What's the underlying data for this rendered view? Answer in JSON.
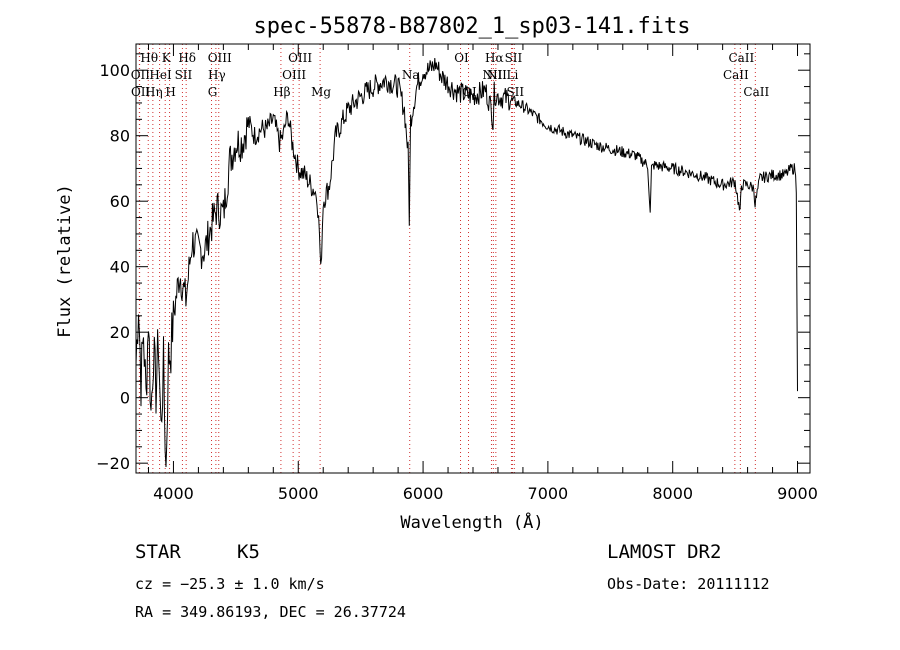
{
  "chart_data": {
    "type": "line",
    "title": "spec-55878-B87802_1_sp03-141.fits",
    "xlabel": "Wavelength (Å)",
    "ylabel": "Flux (relative)",
    "xlim": [
      3700,
      9100
    ],
    "ylim": [
      -23,
      108
    ],
    "xticks": [
      4000,
      5000,
      6000,
      7000,
      8000,
      9000
    ],
    "yticks": [
      -20,
      0,
      20,
      40,
      60,
      80,
      100
    ],
    "grid": false,
    "series": [
      {
        "x": [
          3700,
          3720,
          3740,
          3760,
          3780,
          3800,
          3820,
          3840,
          3860,
          3880,
          3900,
          3920,
          3940,
          3960,
          3980,
          4000,
          4050,
          4100,
          4150,
          4200,
          4250,
          4300,
          4350,
          4400,
          4450,
          4500,
          4550,
          4600,
          4650,
          4700,
          4750,
          4800,
          4850,
          4880,
          4900,
          4920,
          4950,
          5000,
          5050,
          5100,
          5150,
          5170,
          5180,
          5200,
          5250,
          5300,
          5400,
          5500,
          5600,
          5700,
          5800,
          5850,
          5880,
          5890,
          5900,
          5950,
          6000,
          6050,
          6100,
          6150,
          6200,
          6250,
          6300,
          6400,
          6500,
          6550,
          6560,
          6570,
          6600,
          6700,
          6800,
          6900,
          7000,
          7200,
          7400,
          7600,
          7700,
          7800,
          7820,
          7830,
          7850,
          8000,
          8200,
          8400,
          8500,
          8540,
          8550,
          8600,
          8650,
          8660,
          8700,
          8800,
          8900,
          8950,
          8980,
          8990,
          9000
        ],
        "y": [
          10,
          30,
          5,
          20,
          0,
          25,
          -5,
          15,
          2,
          18,
          -10,
          10,
          -22,
          12,
          15,
          25,
          38,
          30,
          48,
          45,
          45,
          52,
          58,
          56,
          72,
          78,
          78,
          84,
          80,
          82,
          82,
          85,
          78,
          80,
          84,
          86,
          78,
          70,
          68,
          65,
          62,
          50,
          38,
          60,
          65,
          80,
          88,
          92,
          95,
          97,
          95,
          88,
          75,
          55,
          85,
          95,
          100,
          100,
          102,
          98,
          96,
          94,
          93,
          92,
          94,
          88,
          84,
          93,
          92,
          91,
          89,
          86,
          83,
          80,
          77,
          75,
          74,
          71,
          56,
          70,
          71,
          70,
          68,
          65,
          66,
          56,
          65,
          65,
          64,
          59,
          67,
          68,
          68,
          70,
          70,
          64,
          2
        ]
      }
    ],
    "spectral_lines": [
      {
        "label": "Hθ",
        "x": 3798
      },
      {
        "label": "K",
        "x": 3934
      },
      {
        "label": "Hδ",
        "x": 4102
      },
      {
        "label": "OII",
        "x": 3727
      },
      {
        "label": "HeI",
        "x": 3889
      },
      {
        "label": "SII",
        "x": 4072
      },
      {
        "label": "OII",
        "x": 3729
      },
      {
        "label": "Hη",
        "x": 3835
      },
      {
        "label": "H",
        "x": 3969
      },
      {
        "label": "OIII",
        "x": 4363
      },
      {
        "label": "Hγ",
        "x": 4340
      },
      {
        "label": "G",
        "x": 4305
      },
      {
        "label": "OIII",
        "x": 5007
      },
      {
        "label": "OIII",
        "x": 4959
      },
      {
        "label": "Hβ",
        "x": 4861
      },
      {
        "label": "Mg",
        "x": 5175
      },
      {
        "label": "Na",
        "x": 5893
      },
      {
        "label": "OI",
        "x": 6300
      },
      {
        "label": "OI",
        "x": 6364
      },
      {
        "label": "Hα",
        "x": 6563
      },
      {
        "label": "SII",
        "x": 6716
      },
      {
        "label": "NII",
        "x": 6548
      },
      {
        "label": "NII",
        "x": 6583
      },
      {
        "label": "SII",
        "x": 6731
      },
      {
        "label": "Li",
        "x": 6708
      },
      {
        "label": "CaII",
        "x": 8542
      },
      {
        "label": "CaII",
        "x": 8498
      },
      {
        "label": "CaII",
        "x": 8662
      }
    ]
  },
  "info": {
    "object_type": "STAR",
    "subclass": "K5",
    "survey": "LAMOST DR2",
    "redshift": "cz = −25.3 ± 1.0 km/s",
    "obs_date": "Obs-Date: 20111112",
    "coords": "RA = 349.86193, DEC =  26.37724"
  },
  "colors": {
    "spectrum": "#000000",
    "line_markers": "#d03030",
    "axes": "#000000"
  }
}
